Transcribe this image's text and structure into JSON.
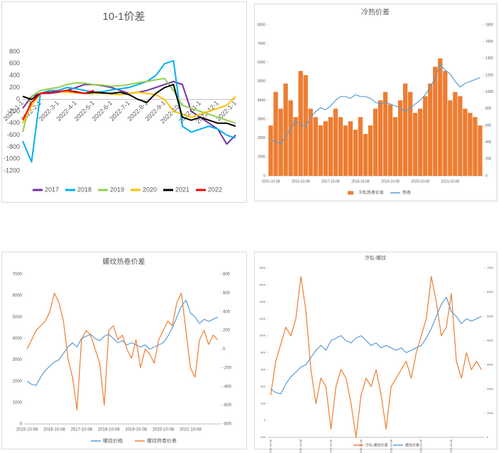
{
  "chart_data": [
    {
      "type": "line",
      "title": "10-1价差",
      "categories": [
        "2022-1-1",
        null,
        "2022-2-1",
        null,
        "2022-3-1",
        null,
        "2022-4-1",
        null,
        "2022-5-1",
        null,
        "2022-6-1",
        null,
        "2022-7-1",
        null,
        "2022-8-1",
        null,
        "2022-9-1",
        null,
        "2022-10-1",
        null,
        "2022-11-1",
        null,
        "2022-12-1",
        null,
        "2022-1-1"
      ],
      "ylim": [
        -1200,
        800
      ],
      "yticks": [
        -1200,
        -1000,
        -800,
        -600,
        -400,
        -200,
        0,
        200,
        400,
        600,
        800
      ],
      "series": [
        {
          "name": "2017",
          "color": "#7030a0",
          "values": [
            -150,
            50,
            100,
            100,
            120,
            150,
            200,
            250,
            250,
            230,
            200,
            150,
            100,
            120,
            150,
            200,
            250,
            300,
            250,
            -200,
            -300,
            -400,
            -500,
            -750,
            -600
          ]
        },
        {
          "name": "2018",
          "color": "#00b0f0",
          "values": [
            -700,
            -1050,
            100,
            150,
            150,
            200,
            180,
            150,
            120,
            130,
            160,
            180,
            200,
            250,
            300,
            400,
            600,
            650,
            -450,
            -550,
            -500,
            -450,
            -500,
            -600,
            -650
          ]
        },
        {
          "name": "2019",
          "color": "#92d050",
          "values": [
            -550,
            50,
            150,
            180,
            200,
            250,
            280,
            270,
            250,
            240,
            220,
            230,
            250,
            280,
            300,
            330,
            350,
            150,
            -100,
            -150,
            -200,
            -250,
            -300,
            -350,
            -400
          ]
        },
        {
          "name": "2020",
          "color": "#ffc000",
          "values": [
            -400,
            -100,
            100,
            120,
            130,
            120,
            110,
            100,
            100,
            100,
            90,
            80,
            100,
            120,
            100,
            80,
            0,
            -200,
            -250,
            -300,
            -250,
            -200,
            -150,
            -100,
            50
          ]
        },
        {
          "name": "2021",
          "color": "#000000",
          "values": [
            50,
            0,
            100,
            120,
            130,
            150,
            130,
            100,
            120,
            110,
            100,
            120,
            80,
            0,
            -50,
            100,
            200,
            250,
            -300,
            -350,
            -300,
            -350,
            -400,
            -400,
            -450
          ]
        },
        {
          "name": "2022",
          "color": "#ff0000",
          "values": [
            -350,
            -50,
            100,
            120,
            130,
            150,
            120,
            100,
            150,
            null,
            null,
            null,
            null,
            null,
            null,
            null,
            null,
            null,
            null,
            null,
            null,
            null,
            null,
            null,
            null
          ]
        }
      ]
    },
    {
      "type": "combo",
      "title": "冷热价差",
      "categories": [
        "2015-10-08",
        null,
        null,
        null,
        null,
        null,
        "2016-10-08",
        null,
        null,
        null,
        null,
        null,
        "2017-10-08",
        null,
        null,
        null,
        null,
        null,
        "2018-10-08",
        null,
        null,
        null,
        null,
        null,
        "2019-10-08",
        null,
        null,
        null,
        null,
        null,
        "2020-10-08",
        null,
        null,
        null,
        null,
        null,
        "2021-10-08",
        null,
        null,
        null,
        null,
        null,
        null
      ],
      "ylim": [
        0,
        8000
      ],
      "yticks": [
        0,
        1000,
        2000,
        3000,
        4000,
        5000,
        6000,
        7000,
        8000
      ],
      "y2lim": [
        0,
        1800
      ],
      "y2ticks": [
        0,
        200,
        400,
        600,
        800,
        1000,
        1200,
        1400,
        1600,
        1800
      ],
      "series": [
        {
          "name": "冷轧热卷价差",
          "color": "#ed7d31",
          "kind": "bar",
          "axis": "y2",
          "values": [
            600,
            1000,
            800,
            1100,
            900,
            700,
            1250,
            1200,
            800,
            700,
            600,
            650,
            700,
            800,
            700,
            600,
            650,
            550,
            700,
            500,
            600,
            800,
            900,
            1000,
            850,
            700,
            900,
            1100,
            1000,
            750,
            800,
            950,
            1100,
            1300,
            1400,
            1250,
            900,
            1000,
            950,
            800,
            750,
            700,
            600
          ]
        },
        {
          "name": "热卷",
          "color": "#5b9bd5",
          "kind": "line",
          "values": [
            1900,
            1800,
            1700,
            2100,
            2500,
            2900,
            2700,
            2600,
            3100,
            3400,
            3600,
            3500,
            3700,
            4000,
            4200,
            4200,
            4100,
            4300,
            4200,
            4200,
            4100,
            3900,
            3800,
            3900,
            3800,
            3700,
            3600,
            3400,
            3600,
            3800,
            4000,
            4300,
            4700,
            5200,
            5900,
            5600,
            5400,
            5000,
            4700,
            4900,
            5000,
            5100,
            5200
          ]
        }
      ]
    },
    {
      "type": "combo",
      "title": "螺纹热卷价差",
      "categories": [
        "2015-10-08",
        null,
        null,
        null,
        null,
        null,
        "2016-10-08",
        null,
        null,
        null,
        null,
        null,
        "2017-10-08",
        null,
        null,
        null,
        null,
        null,
        "2018-10-08",
        null,
        null,
        null,
        null,
        null,
        "2019-10-08",
        null,
        null,
        null,
        null,
        null,
        "2020-10-08",
        null,
        null,
        null,
        null,
        null,
        "2021-10-08",
        null,
        null,
        null,
        null,
        null,
        null
      ],
      "ylim": [
        0,
        7000
      ],
      "yticks": [
        0,
        1000,
        2000,
        3000,
        4000,
        5000,
        6000,
        7000
      ],
      "y2lim": [
        -800,
        800
      ],
      "y2ticks": [
        -800,
        -600,
        -400,
        -200,
        0,
        200,
        400,
        600,
        800
      ],
      "series": [
        {
          "name": "螺纹价格",
          "color": "#5b9bd5",
          "kind": "line",
          "values": [
            2000,
            1850,
            1800,
            2200,
            2500,
            2700,
            2900,
            3000,
            3300,
            3600,
            3800,
            3600,
            4000,
            4100,
            4200,
            4000,
            3900,
            4100,
            4200,
            4000,
            3800,
            3900,
            3700,
            3800,
            3700,
            3600,
            3700,
            3500,
            3600,
            3700,
            3800,
            4100,
            4500,
            5000,
            5500,
            5800,
            5200,
            5000,
            4700,
            4900,
            4800,
            4900,
            5000
          ]
        },
        {
          "name": "螺纹热卷价差",
          "color": "#ed7d31",
          "kind": "line",
          "axis": "y2",
          "values": [
            0,
            100,
            200,
            250,
            300,
            400,
            600,
            500,
            300,
            -100,
            -300,
            -650,
            100,
            200,
            150,
            0,
            -150,
            -600,
            200,
            250,
            100,
            150,
            0,
            -100,
            100,
            -200,
            0,
            -50,
            -150,
            100,
            200,
            300,
            250,
            500,
            600,
            200,
            -200,
            -300,
            100,
            200,
            50,
            150,
            100
          ]
        }
      ]
    },
    {
      "type": "combo",
      "title": "冷轧-螺纹",
      "categories": [
        "2015-10-08",
        null,
        null,
        null,
        null,
        null,
        "2016-10-08",
        null,
        null,
        null,
        null,
        null,
        "2017-10-08",
        null,
        null,
        null,
        null,
        null,
        "2018-10-08",
        null,
        null,
        null,
        null,
        null,
        "2019-10-08",
        null,
        null,
        null,
        null,
        null,
        "2020-10-08",
        null,
        null,
        null,
        null,
        null,
        "2021-10-08",
        null,
        null,
        null,
        null,
        null,
        null
      ],
      "ylim": [
        -200,
        1800
      ],
      "yticks": [
        -200,
        0,
        200,
        400,
        600,
        800,
        1000,
        1200,
        1400,
        1600,
        1800
      ],
      "y2lim": [
        0,
        7000
      ],
      "y2ticks": [
        0,
        1000,
        2000,
        3000,
        4000,
        5000,
        6000,
        7000
      ],
      "series": [
        {
          "name": "冷轧-螺纹价差",
          "color": "#ed7d31",
          "kind": "line",
          "values": [
            300,
            700,
            900,
            1100,
            1000,
            1200,
            1700,
            1300,
            600,
            200,
            500,
            400,
            -100,
            400,
            600,
            500,
            200,
            -200,
            300,
            500,
            400,
            600,
            300,
            -100,
            400,
            500,
            600,
            700,
            500,
            800,
            1000,
            1200,
            1700,
            1400,
            1000,
            1100,
            1500,
            700,
            500,
            800,
            600,
            700,
            600
          ]
        },
        {
          "name": "螺纹价格",
          "color": "#5b9bd5",
          "kind": "line",
          "axis": "y2",
          "values": [
            2000,
            1850,
            1800,
            2200,
            2500,
            2700,
            2900,
            3000,
            3300,
            3600,
            3800,
            3600,
            4000,
            4100,
            4200,
            4000,
            3900,
            4100,
            4200,
            4000,
            3800,
            3900,
            3700,
            3800,
            3700,
            3600,
            3700,
            3500,
            3600,
            3700,
            3800,
            4100,
            4500,
            5000,
            5500,
            5800,
            5200,
            5000,
            4700,
            4900,
            4800,
            4900,
            5000
          ]
        }
      ]
    }
  ]
}
